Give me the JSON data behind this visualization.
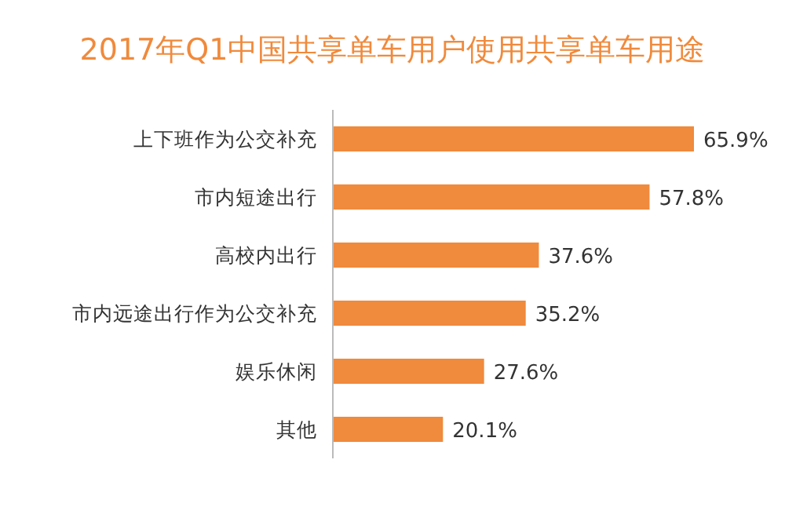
{
  "chart_data": {
    "type": "bar",
    "orientation": "horizontal",
    "title": "2017年Q1中国共享单车用户使用共享单车用途",
    "categories": [
      "上下班作为公交补充",
      "市内短途出行",
      "高校内出行",
      "市内远途出行作为公交补充",
      "娱乐休闲",
      "其他"
    ],
    "values": [
      65.9,
      57.8,
      37.6,
      35.2,
      27.6,
      20.1
    ],
    "value_labels": [
      "65.9%",
      "57.8%",
      "37.6%",
      "35.2%",
      "27.6%",
      "20.1%"
    ],
    "color": "#f08a3c"
  }
}
